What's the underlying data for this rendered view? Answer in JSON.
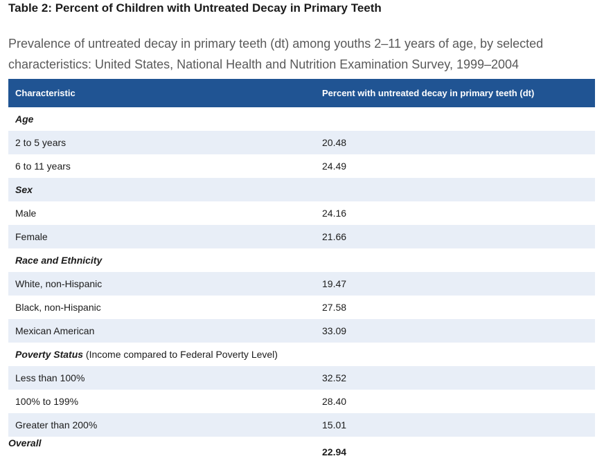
{
  "title": "Table 2: Percent of Children with Untreated Decay in Primary Teeth",
  "subtitle": "Prevalence of untreated decay in primary teeth (dt) among youths 2–11 years of age, by selected characteristics: United States, National Health and Nutrition Examination Survey, 1999–2004",
  "table": {
    "headers": [
      "Characteristic",
      "Percent with untreated decay in primary teeth (dt)"
    ],
    "groups": [
      {
        "label": "Age",
        "note": "",
        "rows": [
          {
            "label": "2 to 5 years",
            "value": "20.48"
          },
          {
            "label": "6 to 11 years",
            "value": "24.49"
          }
        ]
      },
      {
        "label": "Sex",
        "note": "",
        "rows": [
          {
            "label": "Male",
            "value": "24.16"
          },
          {
            "label": "Female",
            "value": "21.66"
          }
        ]
      },
      {
        "label": "Race and Ethnicity",
        "note": "",
        "rows": [
          {
            "label": "White, non-Hispanic",
            "value": "19.47"
          },
          {
            "label": "Black, non-Hispanic",
            "value": "27.58"
          },
          {
            "label": "Mexican American",
            "value": "33.09"
          }
        ]
      },
      {
        "label": "Poverty Status",
        "note": " (Income compared to Federal Poverty Level)",
        "rows": [
          {
            "label": "Less than 100%",
            "value": "32.52"
          },
          {
            "label": "100% to 199%",
            "value": "28.40"
          },
          {
            "label": "Greater than 200%",
            "value": "15.01"
          }
        ]
      }
    ],
    "overall": {
      "label": "Overall",
      "value": "22.94"
    }
  },
  "colors": {
    "header_background": "#205493",
    "header_text": "#ffffff",
    "stripe": "#e8eef7",
    "subtitle_text": "#595959"
  }
}
